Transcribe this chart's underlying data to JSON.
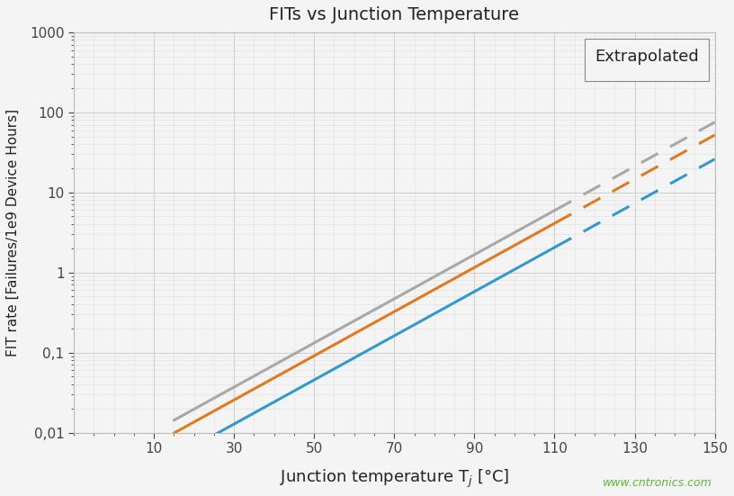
{
  "title": "FITs vs Junction Temperature",
  "xlabel": "Junction temperature T_j [°C]",
  "ylabel": "FIT rate [Failures/1e9 Device Hours]",
  "watermark": "www.cntronics.com",
  "legend_label": "Extrapolated",
  "xlim": [
    -10,
    150
  ],
  "ylim_log": [
    0.01,
    1000
  ],
  "xticks": [
    10,
    30,
    50,
    70,
    90,
    110,
    130,
    150
  ],
  "x_solid_start": 15,
  "x_solid_end": 110,
  "x_dashed_start": 110,
  "x_dashed_end": 150,
  "colors": {
    "gray": "#a8a8a8",
    "orange": "#e07a20",
    "blue": "#3399cc"
  },
  "line_params": {
    "gray": {
      "A": 0.0055,
      "B": 0.0635
    },
    "orange": {
      "A": 0.0038,
      "B": 0.0635
    },
    "blue": {
      "A": 0.0019,
      "B": 0.0635
    }
  },
  "background_color": "#f4f4f4",
  "grid_color": "#d0d0d0",
  "grid_color_minor": "#e0e0e0"
}
